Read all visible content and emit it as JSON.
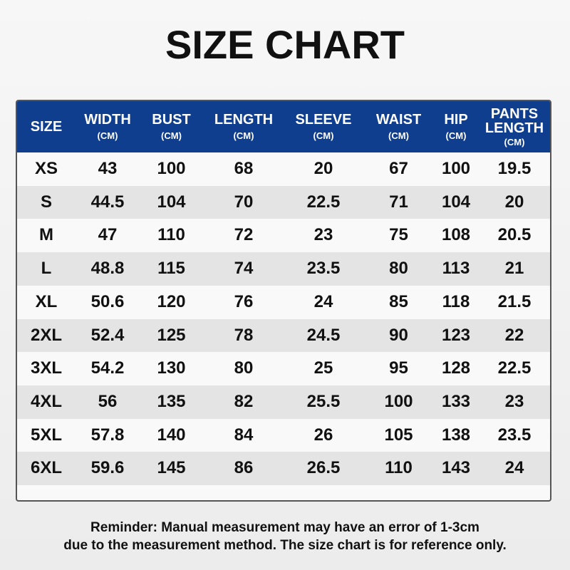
{
  "header": {
    "title": "SIZE CHART"
  },
  "table": {
    "columns": [
      {
        "name": "SIZE"
      },
      {
        "name": "WIDTH",
        "unit": "(CM)"
      },
      {
        "name": "BUST",
        "unit": "(CM)"
      },
      {
        "name": "LENGTH",
        "unit": "(CM)"
      },
      {
        "name": "SLEEVE",
        "unit": "(CM)"
      },
      {
        "name": "WAIST",
        "unit": "(CM)"
      },
      {
        "name": "HIP",
        "unit": "(CM)"
      },
      {
        "name": "PANTS LENGTH",
        "unit": "(CM)"
      }
    ],
    "rows": [
      [
        "XS",
        "43",
        "100",
        "68",
        "20",
        "67",
        "100",
        "19.5"
      ],
      [
        "S",
        "44.5",
        "104",
        "70",
        "22.5",
        "71",
        "104",
        "20"
      ],
      [
        "M",
        "47",
        "110",
        "72",
        "23",
        "75",
        "108",
        "20.5"
      ],
      [
        "L",
        "48.8",
        "115",
        "74",
        "23.5",
        "80",
        "113",
        "21"
      ],
      [
        "XL",
        "50.6",
        "120",
        "76",
        "24",
        "85",
        "118",
        "21.5"
      ],
      [
        "2XL",
        "52.4",
        "125",
        "78",
        "24.5",
        "90",
        "123",
        "22"
      ],
      [
        "3XL",
        "54.2",
        "130",
        "80",
        "25",
        "95",
        "128",
        "22.5"
      ],
      [
        "4XL",
        "56",
        "135",
        "82",
        "25.5",
        "100",
        "133",
        "23"
      ],
      [
        "5XL",
        "57.8",
        "140",
        "84",
        "26",
        "105",
        "138",
        "23.5"
      ],
      [
        "6XL",
        "59.6",
        "145",
        "86",
        "26.5",
        "110",
        "143",
        "24"
      ]
    ]
  },
  "footer": {
    "lines": [
      "Reminder: Manual measurement may have an error of 1-3cm",
      "due to the measurement method. The size chart is for reference only."
    ]
  }
}
